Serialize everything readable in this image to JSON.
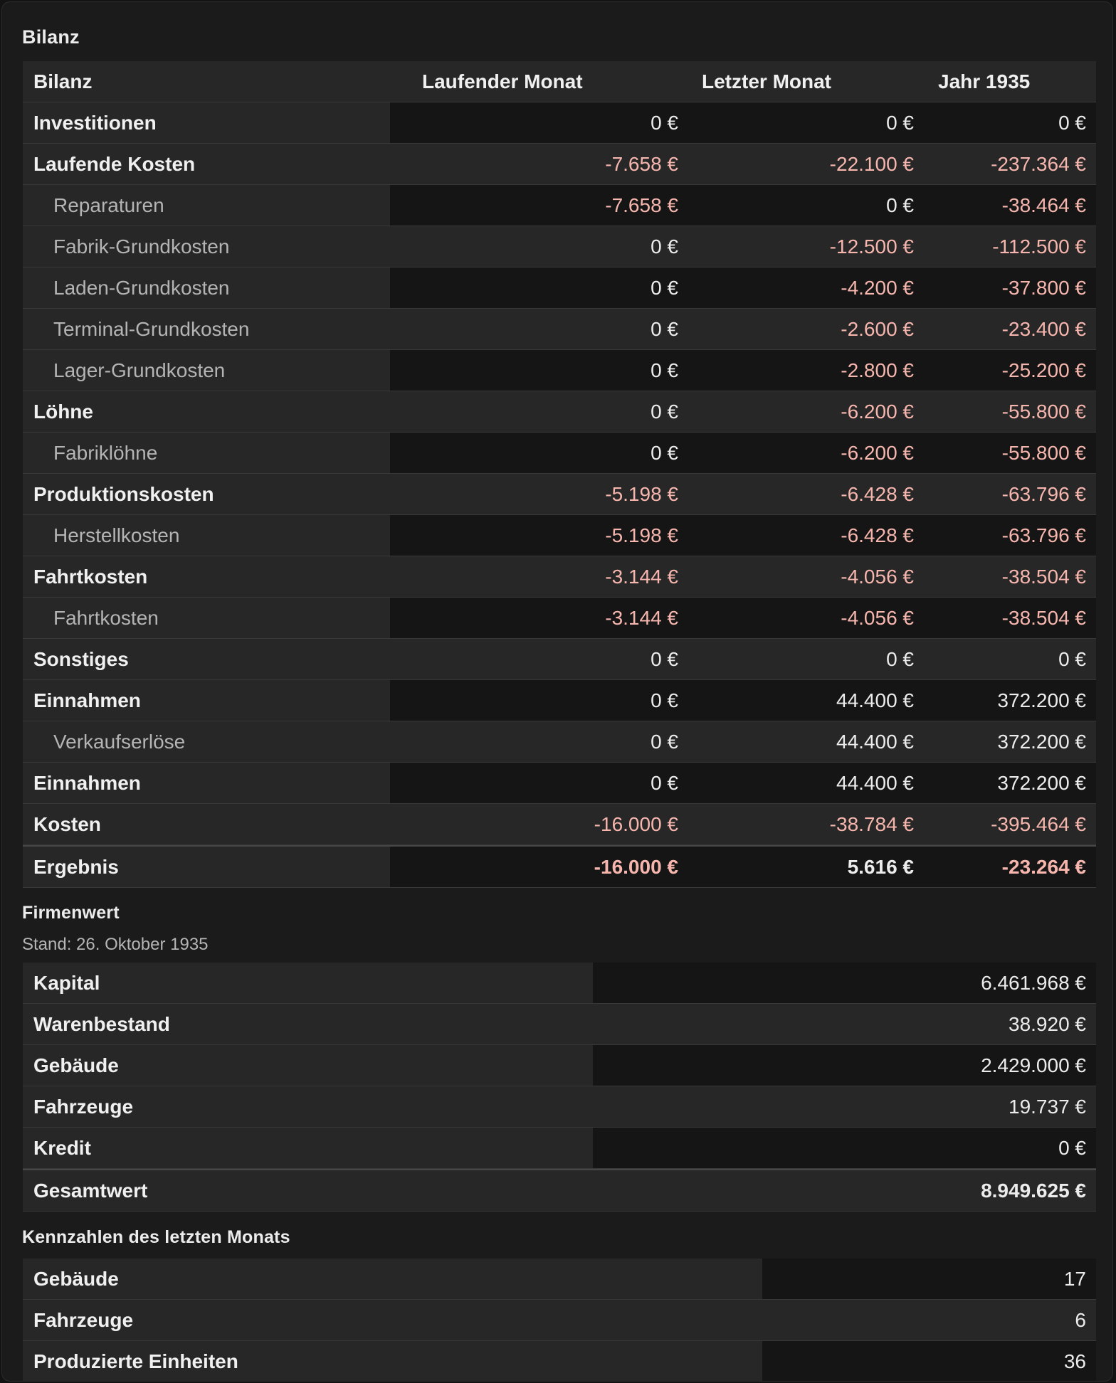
{
  "bilanz": {
    "section_title": "Bilanz",
    "headers": [
      "Bilanz",
      "Laufender Monat",
      "Letzter Monat",
      "Jahr 1935"
    ],
    "rows": [
      {
        "label": "Investitionen",
        "values": [
          "0 €",
          "0 €",
          "0 €"
        ]
      },
      {
        "label": "Laufende Kosten",
        "values": [
          "-7.658 €",
          "-22.100 €",
          "-237.364 €"
        ]
      },
      {
        "label": "Reparaturen",
        "values": [
          "-7.658 €",
          "0 €",
          "-38.464 €"
        ]
      },
      {
        "label": "Fabrik-Grundkosten",
        "values": [
          "0 €",
          "-12.500 €",
          "-112.500 €"
        ]
      },
      {
        "label": "Laden-Grundkosten",
        "values": [
          "0 €",
          "-4.200 €",
          "-37.800 €"
        ]
      },
      {
        "label": "Terminal-Grundkosten",
        "values": [
          "0 €",
          "-2.600 €",
          "-23.400 €"
        ]
      },
      {
        "label": "Lager-Grundkosten",
        "values": [
          "0 €",
          "-2.800 €",
          "-25.200 €"
        ]
      },
      {
        "label": "Löhne",
        "values": [
          "0 €",
          "-6.200 €",
          "-55.800 €"
        ]
      },
      {
        "label": "Fabriklöhne",
        "values": [
          "0 €",
          "-6.200 €",
          "-55.800 €"
        ]
      },
      {
        "label": "Produktionskosten",
        "values": [
          "-5.198 €",
          "-6.428 €",
          "-63.796 €"
        ]
      },
      {
        "label": "Herstellkosten",
        "values": [
          "-5.198 €",
          "-6.428 €",
          "-63.796 €"
        ]
      },
      {
        "label": "Fahrtkosten",
        "values": [
          "-3.144 €",
          "-4.056 €",
          "-38.504 €"
        ]
      },
      {
        "label": "Fahrtkosten",
        "values": [
          "-3.144 €",
          "-4.056 €",
          "-38.504 €"
        ]
      },
      {
        "label": "Sonstiges",
        "values": [
          "0 €",
          "0 €",
          "0 €"
        ]
      },
      {
        "label": "Einnahmen",
        "values": [
          "0 €",
          "44.400 €",
          "372.200 €"
        ]
      },
      {
        "label": "Verkaufserlöse",
        "values": [
          "0 €",
          "44.400 €",
          "372.200 €"
        ]
      },
      {
        "label": "Einnahmen",
        "values": [
          "0 €",
          "44.400 €",
          "372.200 €"
        ]
      },
      {
        "label": "Kosten",
        "values": [
          "-16.000 €",
          "-38.784 €",
          "-395.464 €"
        ]
      },
      {
        "label": "Ergebnis",
        "values": [
          "-16.000 €",
          "5.616 €",
          "-23.264 €"
        ]
      }
    ]
  },
  "firmenwert": {
    "section_title": "Firmenwert",
    "stand": "Stand: 26. Oktober 1935",
    "rows": [
      {
        "label": "Kapital",
        "value": "6.461.968 €"
      },
      {
        "label": "Warenbestand",
        "value": "38.920 €"
      },
      {
        "label": "Gebäude",
        "value": "2.429.000 €"
      },
      {
        "label": "Fahrzeuge",
        "value": "19.737 €"
      },
      {
        "label": "Kredit",
        "value": "0 €"
      },
      {
        "label": "Gesamtwert",
        "value": "8.949.625 €"
      }
    ]
  },
  "kennzahlen": {
    "section_title": "Kennzahlen des letzten Monats",
    "rows": [
      {
        "label": "Gebäude",
        "value": "17"
      },
      {
        "label": "Fahrzeuge",
        "value": "6"
      },
      {
        "label": "Produzierte Einheiten",
        "value": "36"
      }
    ]
  },
  "colors": {
    "background": "#1b1b1b",
    "row_light": "#272727",
    "row_dark": "#151515",
    "negative_value": "#f6b6ae",
    "text": "#ececec",
    "sub_text": "#b4b4b4"
  }
}
